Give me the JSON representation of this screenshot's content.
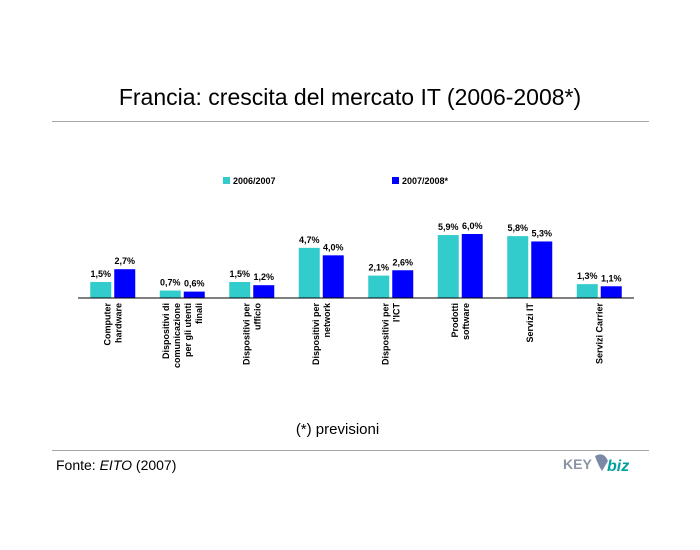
{
  "page": {
    "title": "Francia: crescita del mercato IT (2006-2008*)",
    "footnote": "(*) previsioni",
    "source_prefix": "Fonte: ",
    "source_name": "EITO",
    "source_suffix": " (2007)",
    "logo_text_left": "KEY",
    "logo_text_right": "biz",
    "colors": {
      "series1": "#33cccc",
      "series2": "#0000ff",
      "rule": "#a6a6a6"
    }
  },
  "chart_data": {
    "type": "bar",
    "categories": [
      [
        "Computer",
        "hardware"
      ],
      [
        "Dispositivi di",
        "comunicazione",
        "per gli utenti",
        "finali"
      ],
      [
        "Dispositivi per",
        "ufficio"
      ],
      [
        "Dispositivi per",
        "network"
      ],
      [
        "Dispositivi per",
        "l'ICT"
      ],
      [
        "Prodotti",
        "software"
      ],
      [
        "Servizi IT"
      ],
      [
        "Servizi Carrier"
      ]
    ],
    "series": [
      {
        "name": "2006/2007",
        "color": "#33cccc",
        "values": [
          1.5,
          0.7,
          1.5,
          4.7,
          2.1,
          5.9,
          5.8,
          1.3
        ],
        "labels": [
          "1,5%",
          "0,7%",
          "1,5%",
          "4,7%",
          "2,1%",
          "5,9%",
          "5,8%",
          "1,3%"
        ]
      },
      {
        "name": "2007/2008*",
        "color": "#0000ff",
        "values": [
          2.7,
          0.6,
          1.2,
          4.0,
          2.6,
          6.0,
          5.3,
          1.1
        ],
        "labels": [
          "2,7%",
          "0,6%",
          "1,2%",
          "4,0%",
          "2,6%",
          "6,0%",
          "5,3%",
          "1,1%"
        ]
      }
    ],
    "ylim": [
      0,
      6.0
    ],
    "legend_position": "top",
    "grid": false
  }
}
